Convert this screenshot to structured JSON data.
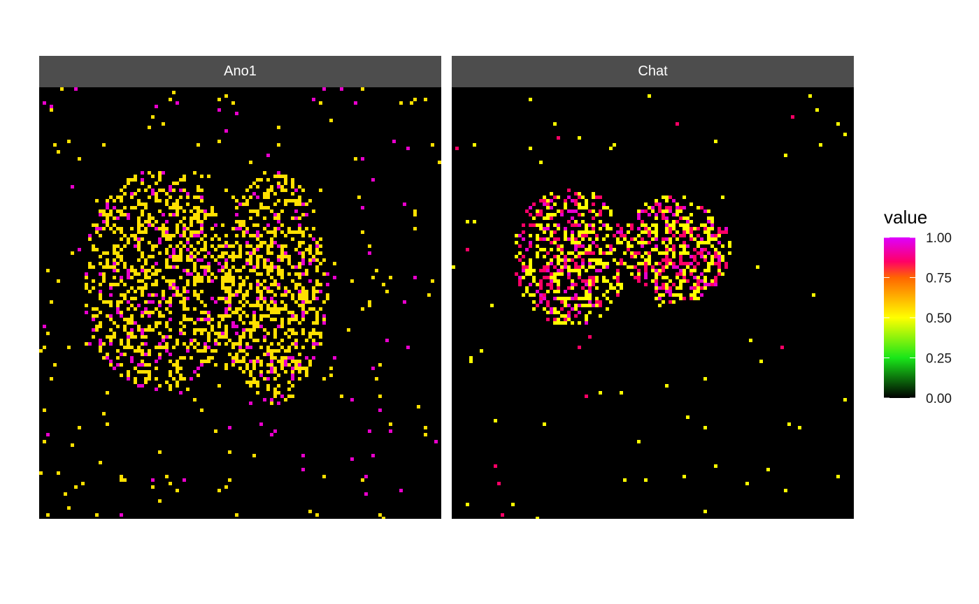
{
  "chart_data": [
    {
      "type": "heatmap",
      "panel_title": "Ano1",
      "xlabel": "",
      "ylabel": "",
      "grid": false,
      "background": "#000000",
      "bin_size": 5,
      "xlim": [
        0,
        575
      ],
      "ylim": [
        0,
        618
      ],
      "clusters": [
        {
          "cx": 170,
          "cy": 275,
          "rx": 108,
          "ry": 160,
          "density": 0.42,
          "values": [
            0.55,
            0.55,
            0.55,
            0.55,
            0.95
          ]
        },
        {
          "cx": 335,
          "cy": 285,
          "rx": 78,
          "ry": 168,
          "density": 0.44,
          "values": [
            0.55,
            0.55,
            0.55,
            0.55,
            0.95
          ]
        }
      ],
      "background_points": {
        "count": 230,
        "values": [
          0.55,
          0.55,
          0.55,
          0.95
        ]
      }
    },
    {
      "type": "heatmap",
      "panel_title": "Chat",
      "xlabel": "",
      "ylabel": "",
      "grid": false,
      "background": "#000000",
      "bin_size": 5,
      "xlim": [
        0,
        575
      ],
      "ylim": [
        0,
        618
      ],
      "clusters": [
        {
          "cx": 165,
          "cy": 238,
          "rx": 82,
          "ry": 100,
          "density": 0.5,
          "values": [
            0.5,
            0.5,
            0.5,
            0.85,
            0.85,
            0.95
          ]
        },
        {
          "cx": 318,
          "cy": 228,
          "rx": 78,
          "ry": 80,
          "density": 0.52,
          "values": [
            0.5,
            0.5,
            0.5,
            0.85,
            0.85,
            0.95
          ]
        }
      ],
      "background_points": {
        "count": 70,
        "values": [
          0.5,
          0.5,
          0.5,
          0.5,
          0.85
        ]
      }
    }
  ],
  "legend": {
    "title": "value",
    "position": "right",
    "range": [
      0,
      1
    ],
    "ticks": [
      "1.00",
      "0.75",
      "0.50",
      "0.25",
      "0.00"
    ],
    "gradient": [
      {
        "value": 0.0,
        "color": "#000000"
      },
      {
        "value": 0.25,
        "color": "#19e619"
      },
      {
        "value": 0.5,
        "color": "#ffff00"
      },
      {
        "value": 0.75,
        "color": "#ff6600"
      },
      {
        "value": 0.85,
        "color": "#ff0066"
      },
      {
        "value": 1.0,
        "color": "#dd00ff"
      }
    ]
  }
}
